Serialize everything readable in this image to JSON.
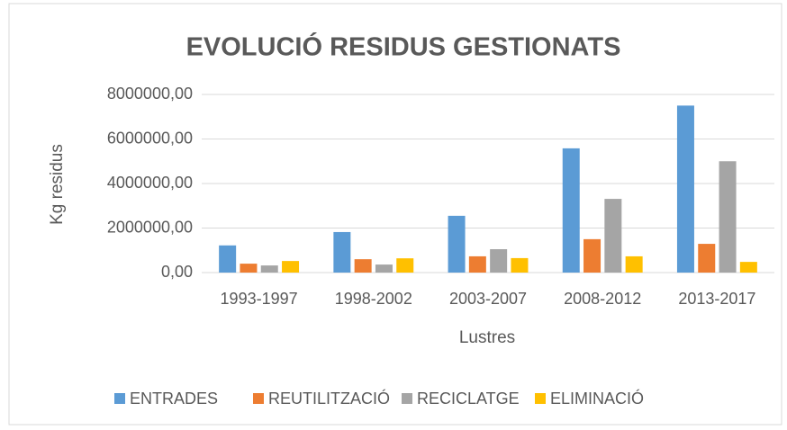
{
  "chart_data": {
    "type": "bar",
    "title": "EVOLUCIÓ RESIDUS GESTIONATS",
    "x_label": "Lustres",
    "y_label": "Kg residus",
    "categories": [
      "1993-1997",
      "1998-2002",
      "2003-2007",
      "2008-2012",
      "2013-2017"
    ],
    "series": [
      {
        "name": "ENTRADES",
        "color": "#5b9bd5",
        "values": [
          1220000,
          1820000,
          2550000,
          5580000,
          7500000
        ]
      },
      {
        "name": "REUTILITZACIÓ",
        "color": "#ed7d31",
        "values": [
          400000,
          600000,
          730000,
          1500000,
          1290000
        ]
      },
      {
        "name": "RECICLATGE",
        "color": "#a5a5a5",
        "values": [
          320000,
          360000,
          1050000,
          3310000,
          5000000
        ]
      },
      {
        "name": "ELIMINACIÓ",
        "color": "#ffc000",
        "values": [
          520000,
          640000,
          650000,
          730000,
          480000
        ]
      }
    ],
    "ylim": [
      0,
      8000000
    ],
    "yticks": [
      {
        "value": 0,
        "label": "0,00"
      },
      {
        "value": 2000000,
        "label": "2000000,00"
      },
      {
        "value": 4000000,
        "label": "4000000,00"
      },
      {
        "value": 6000000,
        "label": "6000000,00"
      },
      {
        "value": 8000000,
        "label": "8000000,00"
      }
    ],
    "grid": true,
    "legend": "bottom"
  }
}
